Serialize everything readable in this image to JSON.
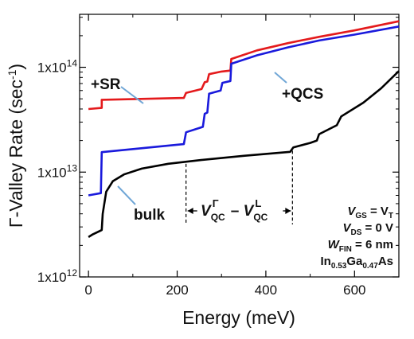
{
  "chart_data": {
    "type": "line",
    "xlabel": "Energy (meV)",
    "ylabel": "Γ-Valley Rate (sec⁻¹)",
    "ylabel_parts": {
      "pre": "Γ-Valley Rate (sec",
      "sup": "-1",
      "post": ")"
    },
    "xlim": [
      -20,
      700
    ],
    "ylim": [
      1000000000000.0,
      320000000000000.0
    ],
    "y_scale": "log",
    "x_ticks": [
      {
        "value": 0,
        "label": "0"
      },
      {
        "value": 200,
        "label": "200"
      },
      {
        "value": 400,
        "label": "400"
      },
      {
        "value": 600,
        "label": "600"
      }
    ],
    "y_ticks": [
      {
        "value": 1000000000000.0,
        "base": "1x10",
        "exp": "12"
      },
      {
        "value": 10000000000000.0,
        "base": "1x10",
        "exp": "13"
      },
      {
        "value": 100000000000000.0,
        "base": "1x10",
        "exp": "14"
      }
    ],
    "series": [
      {
        "name": "+SR",
        "color": "#e41a1c",
        "points": [
          [
            0,
            40000000000000.0
          ],
          [
            30,
            41000000000000.0
          ],
          [
            30,
            49000000000000.0
          ],
          [
            215,
            51000000000000.0
          ],
          [
            220,
            57000000000000.0
          ],
          [
            255,
            62000000000000.0
          ],
          [
            262,
            72000000000000.0
          ],
          [
            268,
            73000000000000.0
          ],
          [
            272,
            86000000000000.0
          ],
          [
            300,
            91000000000000.0
          ],
          [
            320,
            93000000000000.0
          ],
          [
            322,
            120000000000000.0
          ],
          [
            380,
            145000000000000.0
          ],
          [
            450,
            170000000000000.0
          ],
          [
            520,
            195000000000000.0
          ],
          [
            600,
            225000000000000.0
          ],
          [
            700,
            275000000000000.0
          ]
        ]
      },
      {
        "name": "+QCS",
        "color": "#1a1adc",
        "points": [
          [
            0,
            6000000000000.0
          ],
          [
            28,
            6300000000000.0
          ],
          [
            30,
            15500000000000.0
          ],
          [
            215,
            18500000000000.0
          ],
          [
            220,
            24000000000000.0
          ],
          [
            258,
            27000000000000.0
          ],
          [
            262,
            36000000000000.0
          ],
          [
            268,
            37000000000000.0
          ],
          [
            272,
            56000000000000.0
          ],
          [
            298,
            60000000000000.0
          ],
          [
            302,
            71000000000000.0
          ],
          [
            320,
            74000000000000.0
          ],
          [
            322,
            108000000000000.0
          ],
          [
            380,
            130000000000000.0
          ],
          [
            450,
            155000000000000.0
          ],
          [
            520,
            180000000000000.0
          ],
          [
            600,
            205000000000000.0
          ],
          [
            700,
            245000000000000.0
          ]
        ]
      },
      {
        "name": "bulk",
        "color": "#000000",
        "points": [
          [
            0,
            2400000000000.0
          ],
          [
            10,
            2550000000000.0
          ],
          [
            30,
            2800000000000.0
          ],
          [
            32,
            4000000000000.0
          ],
          [
            40,
            6500000000000.0
          ],
          [
            55,
            8200000000000.0
          ],
          [
            80,
            9500000000000.0
          ],
          [
            120,
            10800000000000.0
          ],
          [
            180,
            12000000000000.0
          ],
          [
            250,
            13000000000000.0
          ],
          [
            350,
            14300000000000.0
          ],
          [
            455,
            15600000000000.0
          ],
          [
            462,
            17200000000000.0
          ],
          [
            500,
            19000000000000.0
          ],
          [
            515,
            20000000000000.0
          ],
          [
            520,
            23000000000000.0
          ],
          [
            560,
            28000000000000.0
          ],
          [
            570,
            34000000000000.0
          ],
          [
            620,
            46000000000000.0
          ],
          [
            660,
            63000000000000.0
          ],
          [
            700,
            92000000000000.0
          ]
        ]
      }
    ],
    "annotations": {
      "sr_label": "+SR",
      "qcs_label": "+QCS",
      "bulk_label": "bulk",
      "range_label": {
        "v": "V",
        "sub1": "QC",
        "sup1": "Γ",
        "minus": " – ",
        "sub2": "QC",
        "sup2": "L"
      },
      "range_x": [
        220,
        460
      ],
      "conditions": [
        {
          "v": "V",
          "sub": "GS",
          "rhs": " = V",
          "rhs_sub": "T"
        },
        {
          "v": "V",
          "sub": "DS",
          "rhs": " = 0 V",
          "rhs_sub": ""
        },
        {
          "v": "W",
          "sub": "FIN",
          "rhs": " = 6 nm",
          "rhs_sub": ""
        }
      ],
      "material": {
        "a": "In",
        "a_sub": "0.53",
        "b": "Ga",
        "b_sub": "0.47",
        "c": "As"
      }
    }
  }
}
